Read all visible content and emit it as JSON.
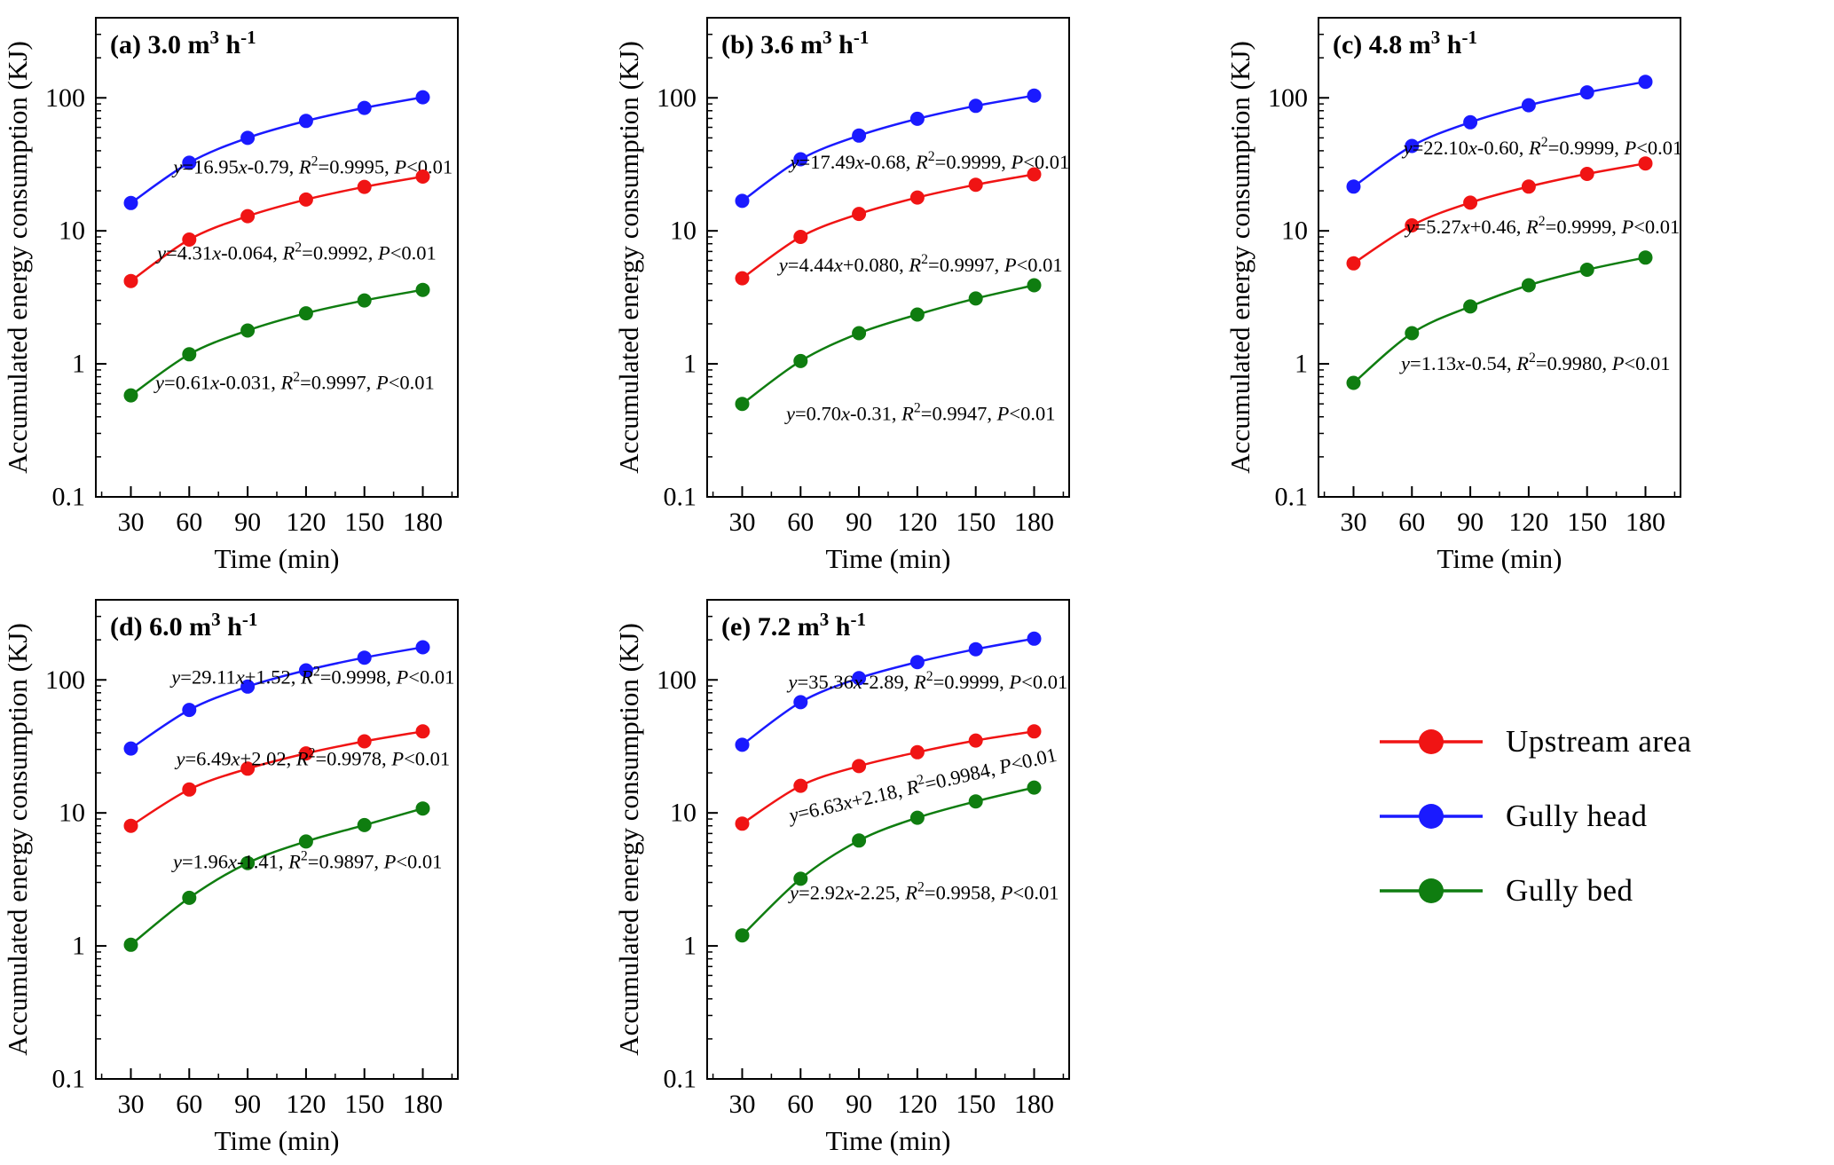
{
  "figure": {
    "ylabel": "Accumulated energy consumption (KJ)",
    "xlabel": "Time (min)",
    "legend": [
      {
        "label": "Upstream area",
        "color": "#f01414"
      },
      {
        "label": "Gully head",
        "color": "#1a1aff"
      },
      {
        "label": "Gully bed",
        "color": "#0f7d10"
      }
    ]
  },
  "chart_data": [
    {
      "type": "line",
      "title_parts": [
        "(a) 3.0 m",
        "3",
        " h",
        "-1"
      ],
      "xlabel": "Time (min)",
      "ylabel": "Accumulated energy consumption (KJ)",
      "x": [
        30,
        60,
        90,
        120,
        150,
        180
      ],
      "ylim": [
        0.1,
        400
      ],
      "yticks": [
        0.1,
        1,
        10,
        100
      ],
      "series": [
        {
          "name": "Gully head",
          "color": "#1a1aff",
          "values": [
            16.2,
            32.5,
            50.0,
            67.0,
            84.0,
            101.0
          ],
          "eq": "y=16.95x-0.79",
          "r2": "0.9995",
          "p": "<0.01",
          "ann": [
            0.6,
            0.325
          ]
        },
        {
          "name": "Upstream area",
          "color": "#f01414",
          "values": [
            4.2,
            8.6,
            12.9,
            17.2,
            21.4,
            25.6
          ],
          "eq": "y=4.31x-0.064",
          "r2": "0.9992",
          "p": "<0.01",
          "ann": [
            0.555,
            0.505
          ]
        },
        {
          "name": "Gully bed",
          "color": "#0f7d10",
          "values": [
            0.58,
            1.18,
            1.78,
            2.4,
            3.0,
            3.6
          ],
          "eq": "y=0.61x-0.031",
          "r2": "0.9997",
          "p": "<0.01",
          "ann": [
            0.55,
            0.775
          ]
        }
      ]
    },
    {
      "type": "line",
      "title_parts": [
        "(b) 3.6 m",
        "3",
        " h",
        "-1"
      ],
      "xlabel": "Time (min)",
      "ylabel": "Accumulated energy consumption (KJ)",
      "x": [
        30,
        60,
        90,
        120,
        150,
        180
      ],
      "ylim": [
        0.1,
        400
      ],
      "yticks": [
        0.1,
        1,
        10,
        100
      ],
      "series": [
        {
          "name": "Gully head",
          "color": "#1a1aff",
          "values": [
            16.8,
            34.5,
            52.0,
            69.5,
            87.0,
            104.0
          ],
          "eq": "y=17.49x-0.68",
          "r2": "0.9999",
          "p": "<0.01",
          "ann": [
            0.615,
            0.315
          ]
        },
        {
          "name": "Upstream area",
          "color": "#f01414",
          "values": [
            4.4,
            9.0,
            13.4,
            17.8,
            22.2,
            26.6
          ],
          "eq": "y=4.44x+0.080",
          "r2": "0.9997",
          "p": "<0.01",
          "ann": [
            0.59,
            0.53
          ]
        },
        {
          "name": "Gully bed",
          "color": "#0f7d10",
          "values": [
            0.5,
            1.05,
            1.7,
            2.35,
            3.1,
            3.9
          ],
          "eq": "y=0.70x-0.31",
          "r2": "0.9947",
          "p": "<0.01",
          "ann": [
            0.59,
            0.84
          ]
        }
      ]
    },
    {
      "type": "line",
      "title_parts": [
        "(c) 4.8 m",
        "3",
        " h",
        "-1"
      ],
      "xlabel": "Time (min)",
      "ylabel": "Accumulated energy consumption (KJ)",
      "x": [
        30,
        60,
        90,
        120,
        150,
        180
      ],
      "ylim": [
        0.1,
        400
      ],
      "yticks": [
        0.1,
        1,
        10,
        100
      ],
      "series": [
        {
          "name": "Gully head",
          "color": "#1a1aff",
          "values": [
            21.5,
            43.5,
            65.5,
            88.0,
            110.0,
            132.0
          ],
          "eq": "y=22.10x-0.60",
          "r2": "0.9999",
          "p": "<0.01",
          "ann": [
            0.62,
            0.285
          ]
        },
        {
          "name": "Upstream area",
          "color": "#f01414",
          "values": [
            5.7,
            11.0,
            16.3,
            21.5,
            26.8,
            32.1
          ],
          "eq": "y=5.27x+0.46",
          "r2": "0.9999",
          "p": "<0.01",
          "ann": [
            0.62,
            0.45
          ]
        },
        {
          "name": "Gully bed",
          "color": "#0f7d10",
          "values": [
            0.72,
            1.7,
            2.7,
            3.9,
            5.1,
            6.3
          ],
          "eq": "y=1.13x-0.54",
          "r2": "0.9980",
          "p": "<0.01",
          "ann": [
            0.6,
            0.735
          ]
        }
      ]
    },
    {
      "type": "line",
      "title_parts": [
        "(d) 6.0 m",
        "3",
        " h",
        "-1"
      ],
      "xlabel": "Time (min)",
      "ylabel": "Accumulated energy consumption (KJ)",
      "x": [
        30,
        60,
        90,
        120,
        150,
        180
      ],
      "ylim": [
        0.1,
        400
      ],
      "yticks": [
        0.1,
        1,
        10,
        100
      ],
      "series": [
        {
          "name": "Gully head",
          "color": "#1a1aff",
          "values": [
            30.5,
            59.5,
            89.0,
            118.0,
            147.0,
            176.0
          ],
          "eq": "y=29.11x+1.52",
          "r2": "0.9998",
          "p": "<0.01",
          "ann": [
            0.6,
            0.175
          ]
        },
        {
          "name": "Upstream area",
          "color": "#f01414",
          "values": [
            8.0,
            15.0,
            21.5,
            28.0,
            34.5,
            41.0
          ],
          "eq": "y=6.49x+2.02",
          "r2": "0.9978",
          "p": "<0.01",
          "ann": [
            0.6,
            0.345
          ]
        },
        {
          "name": "Gully bed",
          "color": "#0f7d10",
          "values": [
            1.02,
            2.3,
            4.2,
            6.1,
            8.1,
            10.8
          ],
          "eq": "y=1.96x-1.41",
          "r2": "0.9897",
          "p": "<0.01",
          "ann": [
            0.585,
            0.56
          ]
        }
      ]
    },
    {
      "type": "line",
      "title_parts": [
        "(e) 7.2 m",
        "3",
        " h",
        "-1"
      ],
      "xlabel": "Time (min)",
      "ylabel": "Accumulated energy consumption (KJ)",
      "x": [
        30,
        60,
        90,
        120,
        150,
        180
      ],
      "ylim": [
        0.1,
        400
      ],
      "yticks": [
        0.1,
        1,
        10,
        100
      ],
      "series": [
        {
          "name": "Gully head",
          "color": "#1a1aff",
          "values": [
            32.5,
            68.0,
            103.0,
            136.0,
            170.0,
            204.0
          ],
          "eq": "y=35.36x-2.89",
          "r2": "0.9999",
          "p": "<0.01",
          "ann": [
            0.61,
            0.185
          ]
        },
        {
          "name": "Upstream area",
          "color": "#f01414",
          "values": [
            8.3,
            16.0,
            22.5,
            28.6,
            35.0,
            41.0
          ],
          "eq": "y=6.63x+2.18",
          "r2": "0.9984",
          "p": "<0.01",
          "ann": [
            0.6,
            0.4
          ],
          "rot": -13
        },
        {
          "name": "Gully bed",
          "color": "#0f7d10",
          "values": [
            1.2,
            3.2,
            6.2,
            9.2,
            12.2,
            15.5
          ],
          "eq": "y=2.92x-2.25",
          "r2": "0.9958",
          "p": "<0.01",
          "ann": [
            0.6,
            0.625
          ]
        }
      ]
    }
  ]
}
